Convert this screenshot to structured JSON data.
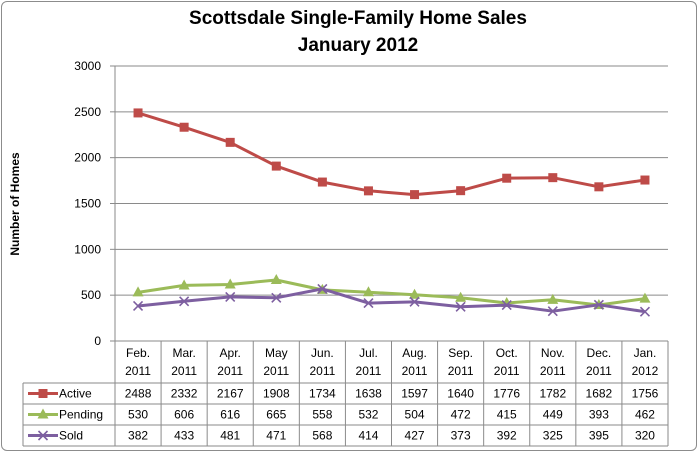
{
  "chart_data": {
    "type": "line",
    "title": "Scottsdale Single-Family Home Sales",
    "subtitle": "January 2012",
    "ylabel": "Number of Homes",
    "xlabel": "",
    "ylim": [
      0,
      3000
    ],
    "yticks": [
      0,
      500,
      1000,
      1500,
      2000,
      2500,
      3000
    ],
    "grid": true,
    "legend": "data-table",
    "categories": [
      [
        "Feb.",
        "2011"
      ],
      [
        "Mar.",
        "2011"
      ],
      [
        "Apr.",
        "2011"
      ],
      [
        "May",
        "2011"
      ],
      [
        "Jun.",
        "2011"
      ],
      [
        "Jul.",
        "2011"
      ],
      [
        "Aug.",
        "2011"
      ],
      [
        "Sep.",
        "2011"
      ],
      [
        "Oct.",
        "2011"
      ],
      [
        "Nov.",
        "2011"
      ],
      [
        "Dec.",
        "2011"
      ],
      [
        "Jan.",
        "2012"
      ]
    ],
    "series": [
      {
        "name": "Active",
        "color": "#be4b48",
        "marker": "square",
        "values": [
          2488,
          2332,
          2167,
          1908,
          1734,
          1638,
          1597,
          1640,
          1776,
          1782,
          1682,
          1756
        ]
      },
      {
        "name": "Pending",
        "color": "#9bbb59",
        "marker": "triangle",
        "values": [
          530,
          606,
          616,
          665,
          558,
          532,
          504,
          472,
          415,
          449,
          393,
          462
        ]
      },
      {
        "name": "Sold",
        "color": "#7d5fa0",
        "marker": "x",
        "values": [
          382,
          433,
          481,
          471,
          568,
          414,
          427,
          373,
          392,
          325,
          395,
          320
        ]
      }
    ]
  }
}
